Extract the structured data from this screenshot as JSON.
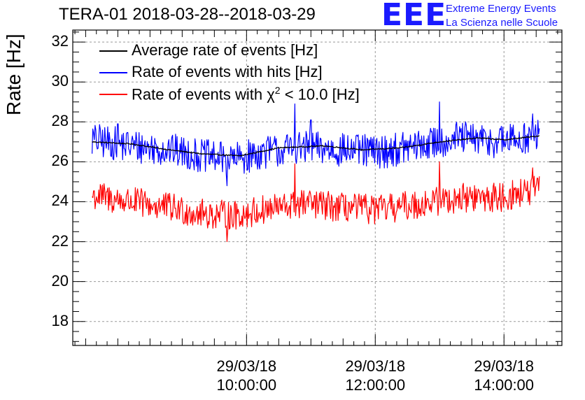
{
  "header": {
    "title": "TERA-01 2018-03-28--2018-03-29",
    "logo_text": "EEE",
    "logo_line1": "Extreme Energy Events",
    "logo_line2": "La Scienza nelle Scuole"
  },
  "chart_data": {
    "type": "line",
    "title": "TERA-01 2018-03-28--2018-03-29",
    "xlabel": "",
    "ylabel": "Rate [Hz]",
    "ylim": [
      16.8,
      32.6
    ],
    "xlim_hours": [
      7.3,
      14.9
    ],
    "grid": true,
    "legend_position": "top-left",
    "yticks": [
      18,
      20,
      22,
      24,
      26,
      28,
      30,
      32
    ],
    "xticks": [
      {
        "hour": 10,
        "date": "29/03/18",
        "time": "10:00:00"
      },
      {
        "hour": 12,
        "date": "29/03/18",
        "time": "12:00:00"
      },
      {
        "hour": 14,
        "date": "29/03/18",
        "time": "14:00:00"
      }
    ],
    "series": [
      {
        "name": "Average rate of events [Hz]",
        "color": "#000000",
        "x_start_hour": 7.6,
        "x_end_hour": 14.55,
        "knots": [
          [
            7.6,
            27.0
          ],
          [
            8.2,
            26.9
          ],
          [
            8.8,
            26.6
          ],
          [
            9.3,
            26.4
          ],
          [
            9.9,
            26.3
          ],
          [
            10.5,
            26.7
          ],
          [
            11.2,
            26.8
          ],
          [
            11.8,
            26.6
          ],
          [
            12.4,
            26.7
          ],
          [
            13.0,
            27.0
          ],
          [
            13.6,
            27.2
          ],
          [
            14.0,
            27.1
          ],
          [
            14.55,
            27.3
          ]
        ],
        "noise_amp": 0.06,
        "spikes": []
      },
      {
        "name": "Rate of events with hits [Hz]",
        "color": "#0000ff",
        "x_start_hour": 7.6,
        "x_end_hour": 14.55,
        "knots": [
          [
            7.6,
            27.1
          ],
          [
            8.2,
            26.8
          ],
          [
            8.8,
            26.6
          ],
          [
            9.3,
            26.3
          ],
          [
            9.8,
            26.1
          ],
          [
            10.3,
            26.5
          ],
          [
            10.9,
            26.7
          ],
          [
            11.5,
            26.6
          ],
          [
            12.1,
            26.5
          ],
          [
            12.7,
            26.8
          ],
          [
            13.3,
            27.2
          ],
          [
            13.9,
            27.0
          ],
          [
            14.55,
            27.3
          ]
        ],
        "noise_amp": 1.7,
        "spikes": [
          [
            8.0,
            27.9
          ],
          [
            9.7,
            24.8
          ],
          [
            10.75,
            28.9
          ],
          [
            11.0,
            28.1
          ],
          [
            13.0,
            29.0
          ],
          [
            14.45,
            28.4
          ]
        ]
      },
      {
        "name": "Rate of events with χ² < 10.0 [Hz]",
        "color": "#ff0000",
        "x_start_hour": 7.6,
        "x_end_hour": 14.55,
        "knots": [
          [
            7.6,
            24.3
          ],
          [
            8.2,
            24.0
          ],
          [
            8.8,
            23.7
          ],
          [
            9.3,
            23.4
          ],
          [
            9.8,
            23.3
          ],
          [
            10.3,
            23.6
          ],
          [
            10.9,
            23.9
          ],
          [
            11.5,
            23.7
          ],
          [
            12.1,
            23.6
          ],
          [
            12.7,
            23.9
          ],
          [
            13.3,
            24.2
          ],
          [
            13.9,
            24.2
          ],
          [
            14.55,
            24.6
          ]
        ],
        "noise_amp": 1.5,
        "spikes": [
          [
            9.7,
            22.0
          ],
          [
            10.75,
            25.9
          ],
          [
            13.0,
            26.0
          ],
          [
            14.45,
            25.7
          ]
        ]
      }
    ]
  },
  "legend": {
    "entries": [
      {
        "label": "Average rate of events [Hz]",
        "color": "#000000"
      },
      {
        "label": "Rate of events with hits [Hz]",
        "color": "#0000ff"
      },
      {
        "label_prefix": "Rate of events with ",
        "label_chi": "χ",
        "label_sup": "2",
        "label_suffix": " < 10.0 [Hz]",
        "color": "#ff0000"
      }
    ]
  }
}
